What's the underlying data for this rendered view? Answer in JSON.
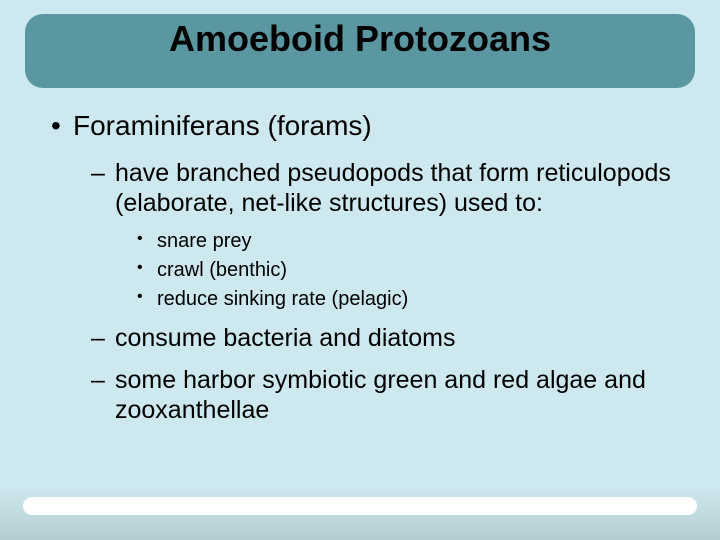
{
  "slide": {
    "title": "Amoeboid Protozoans",
    "title_fontsize": 36,
    "title_color": "#000000",
    "background_color": "#cde8ee",
    "banner_color": "#5b97a0",
    "banner_radius": 18,
    "text_color": "#000000",
    "font_family": "Arial",
    "body": {
      "l1": "Foraminiferans (forams)",
      "l2a": "have branched pseudopods that form reticulopods (elaborate, net-like structures) used to:",
      "l3a": "snare prey",
      "l3b": "crawl (benthic)",
      "l3c": "reduce sinking rate (pelagic)",
      "l2b": "consume bacteria and diatoms",
      "l2c": "some harbor symbiotic green and red algae and zooxanthellae"
    },
    "font_sizes": {
      "l1": 28,
      "l2": 25,
      "l3": 20
    }
  }
}
